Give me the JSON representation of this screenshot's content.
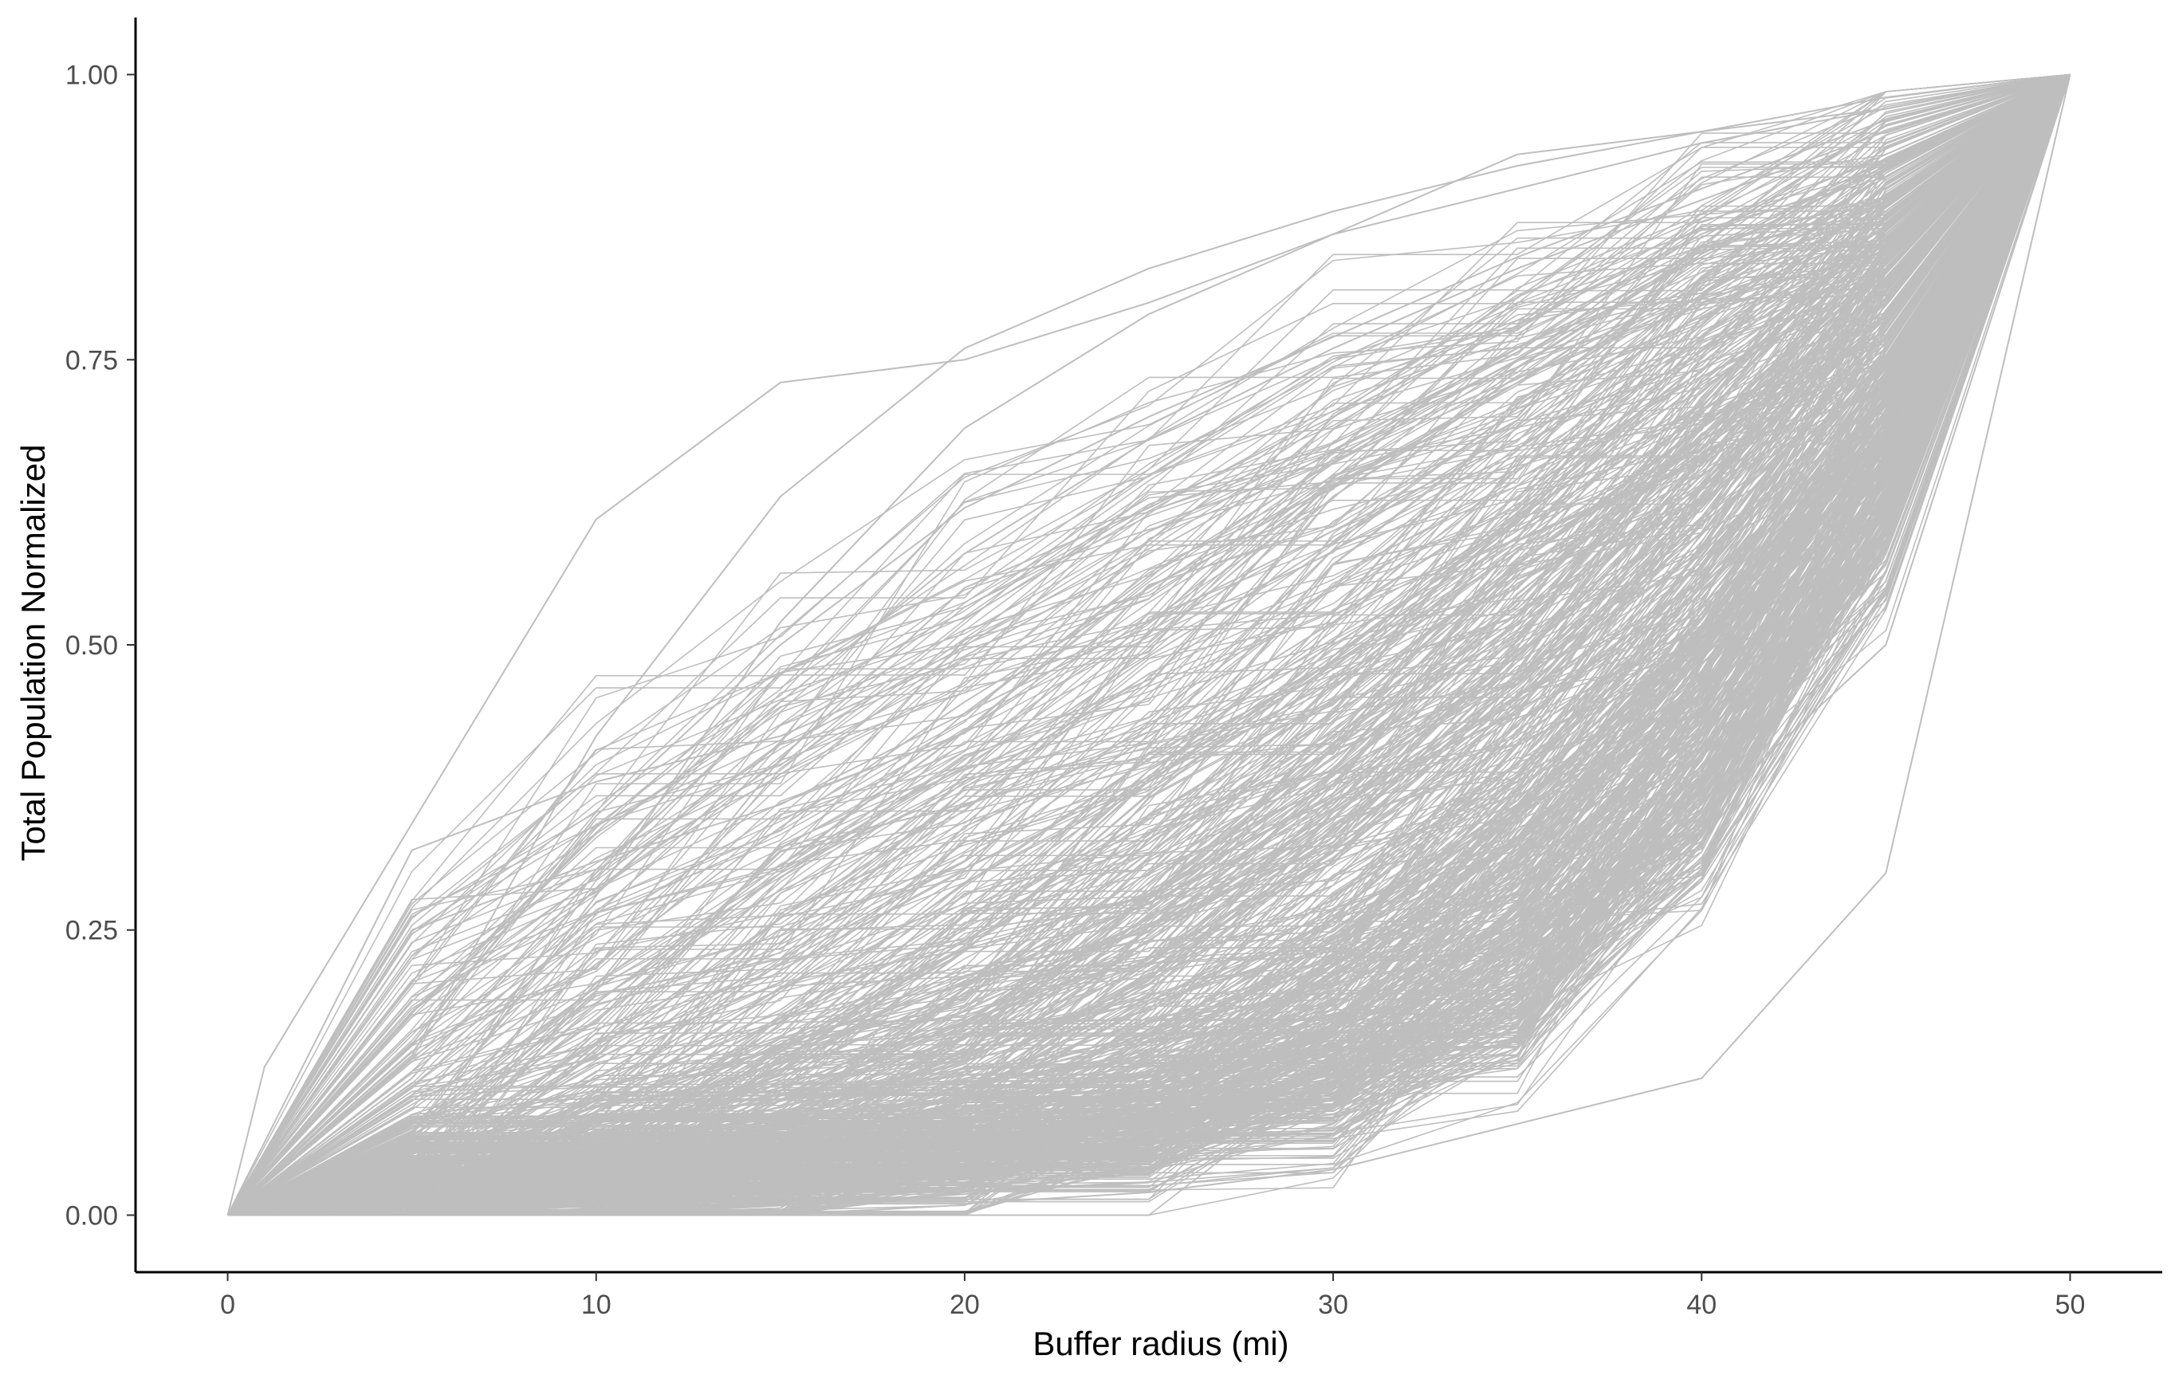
{
  "chart_data": {
    "type": "line",
    "title": "",
    "xlabel": "Buffer radius (mi)",
    "ylabel": "Total Population Normalized",
    "xlim": [
      -2.5,
      52.5
    ],
    "ylim": [
      -0.05,
      1.05
    ],
    "x_ticks": [
      0,
      10,
      20,
      30,
      40,
      50
    ],
    "x_tick_labels": [
      "0",
      "10",
      "20",
      "30",
      "40",
      "50"
    ],
    "y_ticks": [
      0,
      0.25,
      0.5,
      0.75,
      1.0
    ],
    "y_tick_labels": [
      "0.00",
      "0.25",
      "0.50",
      "0.75",
      "1.00"
    ],
    "grid": false,
    "legend": "none",
    "line_color": "#bebebe",
    "axis_color": "#000000",
    "note": "Hundreds of overlapping gray lines; each rises from 0 at radius 0 to 1 at radius 50. Representative traced series listed below.",
    "series": [
      {
        "x": [
          0,
          1,
          10,
          15,
          20,
          25,
          30,
          35,
          40,
          45,
          50
        ],
        "values": [
          0,
          0.13,
          0.61,
          0.73,
          0.75,
          0.8,
          0.86,
          0.93,
          0.95,
          0.97,
          1.0
        ]
      },
      {
        "x": [
          0,
          5,
          10,
          15,
          20,
          25,
          30,
          35,
          40,
          45,
          50
        ],
        "values": [
          0,
          0.32,
          0.38,
          0.42,
          0.49,
          0.58,
          0.67,
          0.76,
          0.84,
          0.92,
          1.0
        ]
      },
      {
        "x": [
          0,
          5,
          10,
          15,
          20,
          25,
          30,
          35,
          40,
          45,
          50
        ],
        "values": [
          0,
          0.14,
          0.42,
          0.63,
          0.76,
          0.83,
          0.88,
          0.92,
          0.95,
          0.98,
          1.0
        ]
      },
      {
        "x": [
          0,
          5,
          10,
          15,
          20,
          25,
          30,
          35,
          40,
          45,
          50
        ],
        "values": [
          0,
          0.07,
          0.28,
          0.52,
          0.69,
          0.79,
          0.86,
          0.9,
          0.94,
          0.97,
          1.0
        ]
      },
      {
        "x": [
          0,
          5,
          10,
          15,
          20,
          25,
          30,
          35,
          40,
          45,
          50
        ],
        "values": [
          0,
          0.1,
          0.22,
          0.34,
          0.45,
          0.55,
          0.64,
          0.73,
          0.82,
          0.91,
          1.0
        ]
      },
      {
        "x": [
          0,
          5,
          10,
          15,
          20,
          25,
          30,
          35,
          40,
          45,
          50
        ],
        "values": [
          0,
          0.05,
          0.14,
          0.26,
          0.38,
          0.49,
          0.59,
          0.69,
          0.79,
          0.89,
          1.0
        ]
      },
      {
        "x": [
          0,
          5,
          10,
          15,
          20,
          25,
          30,
          35,
          40,
          45,
          50
        ],
        "values": [
          0,
          0.03,
          0.09,
          0.17,
          0.27,
          0.38,
          0.49,
          0.61,
          0.73,
          0.86,
          1.0
        ]
      },
      {
        "x": [
          0,
          5,
          10,
          15,
          20,
          25,
          30,
          35,
          40,
          45,
          50
        ],
        "values": [
          0,
          0.02,
          0.05,
          0.1,
          0.17,
          0.26,
          0.37,
          0.49,
          0.62,
          0.79,
          1.0
        ]
      },
      {
        "x": [
          0,
          5,
          10,
          15,
          20,
          25,
          30,
          35,
          40,
          45,
          50
        ],
        "values": [
          0,
          0.01,
          0.03,
          0.06,
          0.1,
          0.16,
          0.25,
          0.36,
          0.5,
          0.7,
          1.0
        ]
      },
      {
        "x": [
          0,
          5,
          10,
          15,
          20,
          25,
          30,
          35,
          40,
          45,
          50
        ],
        "values": [
          0,
          0.0,
          0.01,
          0.02,
          0.04,
          0.07,
          0.12,
          0.2,
          0.3,
          0.55,
          1.0
        ]
      },
      {
        "x": [
          0,
          5,
          10,
          15,
          20,
          25,
          30,
          35,
          40,
          45,
          50
        ],
        "values": [
          0,
          0.0,
          0.0,
          0.01,
          0.01,
          0.02,
          0.04,
          0.08,
          0.12,
          0.3,
          1.0
        ]
      },
      {
        "x": [
          0,
          5,
          10,
          15,
          20,
          25,
          30,
          35,
          40,
          45,
          50
        ],
        "values": [
          0,
          0.01,
          0.02,
          0.03,
          0.05,
          0.08,
          0.13,
          0.21,
          0.35,
          0.5,
          1.0
        ]
      },
      {
        "x": [
          0,
          5,
          10,
          15,
          20,
          25,
          30,
          35,
          40,
          45,
          50
        ],
        "values": [
          0,
          0.25,
          0.31,
          0.36,
          0.44,
          0.52,
          0.6,
          0.68,
          0.77,
          0.88,
          1.0
        ]
      },
      {
        "x": [
          0,
          5,
          10,
          15,
          20,
          25,
          30,
          35,
          40,
          45,
          50
        ],
        "values": [
          0,
          0.04,
          0.12,
          0.22,
          0.31,
          0.42,
          0.52,
          0.63,
          0.74,
          0.86,
          1.0
        ]
      },
      {
        "x": [
          0,
          5,
          10,
          15,
          20,
          25,
          30,
          35,
          40,
          45,
          50
        ],
        "values": [
          0,
          0.02,
          0.08,
          0.15,
          0.24,
          0.35,
          0.45,
          0.57,
          0.69,
          0.83,
          1.0
        ]
      },
      {
        "x": [
          0,
          5,
          10,
          15,
          20,
          25,
          30,
          35,
          40,
          45,
          50
        ],
        "values": [
          0,
          0.06,
          0.17,
          0.3,
          0.44,
          0.56,
          0.66,
          0.75,
          0.84,
          0.92,
          1.0
        ]
      },
      {
        "x": [
          0,
          5,
          10,
          15,
          20,
          25,
          30,
          35,
          40,
          45,
          50
        ],
        "values": [
          0,
          0.12,
          0.3,
          0.45,
          0.58,
          0.68,
          0.76,
          0.83,
          0.89,
          0.95,
          1.0
        ]
      },
      {
        "x": [
          0,
          5,
          10,
          15,
          20,
          25,
          30,
          35,
          40,
          45,
          50
        ],
        "values": [
          0,
          0.01,
          0.04,
          0.08,
          0.14,
          0.22,
          0.31,
          0.43,
          0.56,
          0.75,
          1.0
        ]
      },
      {
        "x": [
          0,
          5,
          10,
          15,
          20,
          25,
          30,
          35,
          40,
          45,
          50
        ],
        "values": [
          0,
          0.0,
          0.02,
          0.04,
          0.07,
          0.11,
          0.18,
          0.28,
          0.42,
          0.62,
          1.0
        ]
      },
      {
        "x": [
          0,
          5,
          10,
          15,
          20,
          25,
          30,
          35,
          40,
          45,
          50
        ],
        "values": [
          0,
          0.08,
          0.2,
          0.4,
          0.55,
          0.62,
          0.7,
          0.78,
          0.86,
          0.93,
          1.0
        ]
      },
      {
        "x": [
          0,
          5,
          10,
          15,
          20,
          25,
          30,
          35,
          40,
          45,
          50
        ],
        "values": [
          0,
          0.03,
          0.06,
          0.12,
          0.2,
          0.3,
          0.4,
          0.52,
          0.64,
          0.8,
          1.0
        ]
      },
      {
        "x": [
          0,
          5,
          10,
          15,
          20,
          25,
          30,
          35,
          40,
          45,
          50
        ],
        "values": [
          0,
          0.0,
          0.01,
          0.03,
          0.05,
          0.09,
          0.15,
          0.24,
          0.36,
          0.58,
          1.0
        ]
      },
      {
        "x": [
          0,
          5,
          10,
          15,
          20,
          25,
          30,
          35,
          40,
          45,
          50
        ],
        "values": [
          0,
          0.15,
          0.35,
          0.5,
          0.62,
          0.7,
          0.77,
          0.84,
          0.9,
          0.96,
          1.0
        ]
      },
      {
        "x": [
          0,
          5,
          10,
          15,
          20,
          25,
          30,
          35,
          40,
          45,
          50
        ],
        "values": [
          0,
          0.05,
          0.1,
          0.18,
          0.29,
          0.4,
          0.5,
          0.6,
          0.71,
          0.85,
          1.0
        ]
      }
    ]
  }
}
